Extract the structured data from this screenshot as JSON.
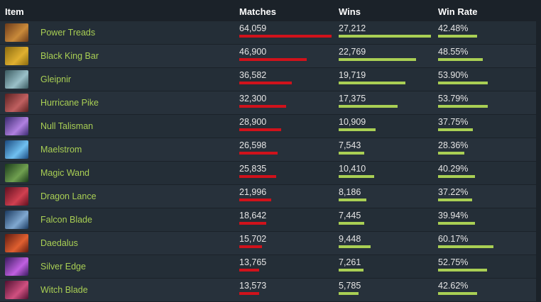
{
  "header": {
    "item": "Item",
    "matches": "Matches",
    "wins": "Wins",
    "win_rate": "Win Rate"
  },
  "rows": [
    {
      "name": "Power Treads",
      "matches": {
        "value": 64059,
        "label": "64,059"
      },
      "wins": {
        "value": 27212,
        "label": "27,212"
      },
      "win_rate": {
        "value": 42.48,
        "label": "42.48%"
      }
    },
    {
      "name": "Black King Bar",
      "matches": {
        "value": 46900,
        "label": "46,900"
      },
      "wins": {
        "value": 22769,
        "label": "22,769"
      },
      "win_rate": {
        "value": 48.55,
        "label": "48.55%"
      }
    },
    {
      "name": "Gleipnir",
      "matches": {
        "value": 36582,
        "label": "36,582"
      },
      "wins": {
        "value": 19719,
        "label": "19,719"
      },
      "win_rate": {
        "value": 53.9,
        "label": "53.90%"
      }
    },
    {
      "name": "Hurricane Pike",
      "matches": {
        "value": 32300,
        "label": "32,300"
      },
      "wins": {
        "value": 17375,
        "label": "17,375"
      },
      "win_rate": {
        "value": 53.79,
        "label": "53.79%"
      }
    },
    {
      "name": "Null Talisman",
      "matches": {
        "value": 28900,
        "label": "28,900"
      },
      "wins": {
        "value": 10909,
        "label": "10,909"
      },
      "win_rate": {
        "value": 37.75,
        "label": "37.75%"
      }
    },
    {
      "name": "Maelstrom",
      "matches": {
        "value": 26598,
        "label": "26,598"
      },
      "wins": {
        "value": 7543,
        "label": "7,543"
      },
      "win_rate": {
        "value": 28.36,
        "label": "28.36%"
      }
    },
    {
      "name": "Magic Wand",
      "matches": {
        "value": 25835,
        "label": "25,835"
      },
      "wins": {
        "value": 10410,
        "label": "10,410"
      },
      "win_rate": {
        "value": 40.29,
        "label": "40.29%"
      }
    },
    {
      "name": "Dragon Lance",
      "matches": {
        "value": 21996,
        "label": "21,996"
      },
      "wins": {
        "value": 8186,
        "label": "8,186"
      },
      "win_rate": {
        "value": 37.22,
        "label": "37.22%"
      }
    },
    {
      "name": "Falcon Blade",
      "matches": {
        "value": 18642,
        "label": "18,642"
      },
      "wins": {
        "value": 7445,
        "label": "7,445"
      },
      "win_rate": {
        "value": 39.94,
        "label": "39.94%"
      }
    },
    {
      "name": "Daedalus",
      "matches": {
        "value": 15702,
        "label": "15,702"
      },
      "wins": {
        "value": 9448,
        "label": "9,448"
      },
      "win_rate": {
        "value": 60.17,
        "label": "60.17%"
      }
    },
    {
      "name": "Silver Edge",
      "matches": {
        "value": 13765,
        "label": "13,765"
      },
      "wins": {
        "value": 7261,
        "label": "7,261"
      },
      "win_rate": {
        "value": 52.75,
        "label": "52.75%"
      }
    },
    {
      "name": "Witch Blade",
      "matches": {
        "value": 13573,
        "label": "13,573"
      },
      "wins": {
        "value": 5785,
        "label": "5,785"
      },
      "win_rate": {
        "value": 42.62,
        "label": "42.62%"
      }
    }
  ]
}
